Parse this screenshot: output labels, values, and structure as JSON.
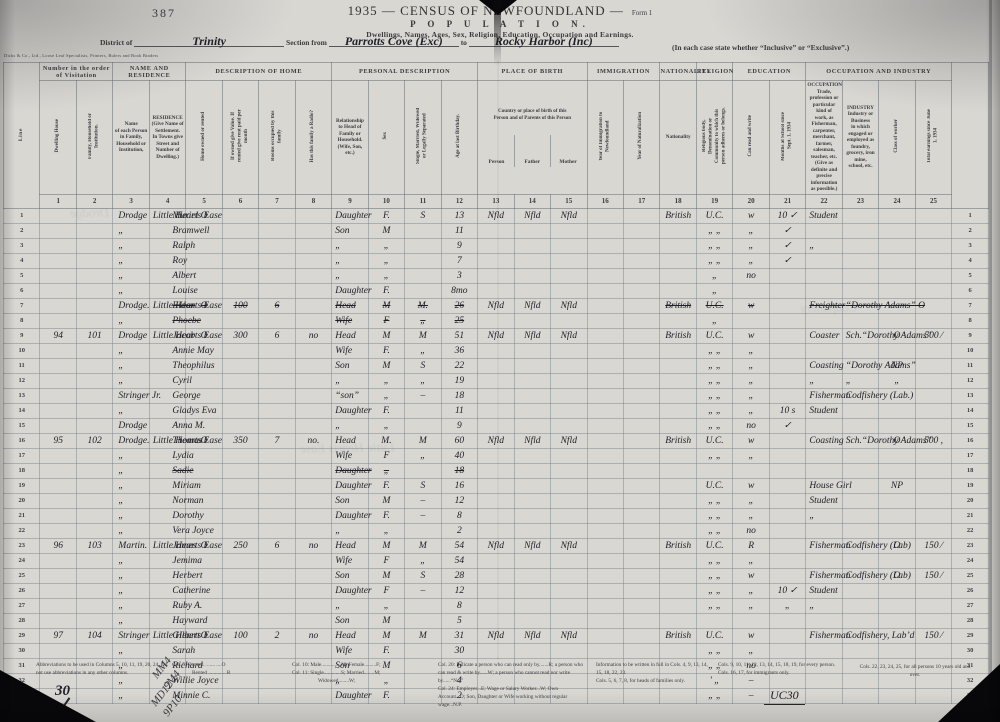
{
  "page": {
    "number": "387",
    "scribble_30": "30",
    "tallies": [
      "MM4",
      "9M4",
      "MD12",
      "9P10"
    ],
    "uc30": "UC30",
    "ghosts": [
      "Drodge",
      "Little Hearts Ease",
      "Codfishery"
    ]
  },
  "header": {
    "title_main": "1935  —  CENSUS OF NEWFOUNDLAND  —",
    "form": "Form 1",
    "population": "P O P U L A T I O N.",
    "subtitle": "Dwellings, Names, Ages, Sex, Religion, Education, Occupation and Earnings.",
    "district_label": "District of",
    "district": "Trinity",
    "section_label": "Section from",
    "section_from": "Parrotts Cove (Exc)",
    "to_label": "to",
    "section_to": "Rocky Harbor (Inc)",
    "inclusive_note": "(In each case state whether “Inclusive” or “Exclusive”.)",
    "imprint": "Dicks & Co., Ltd., Loose Leaf Specialists, Printers, Rulers and Book Binders"
  },
  "table": {
    "group_row": [
      {
        "t": "Line",
        "rs": 3,
        "v": 1,
        "cls": "line-head"
      },
      {
        "t": "Number in the order of Visitation",
        "cs": 2
      },
      {
        "t": "NAME AND RESIDENCE",
        "cs": 2
      },
      {
        "t": "DESCRIPTION OF HOME",
        "cs": 4
      },
      {
        "t": "PERSONAL DESCRIPTION",
        "cs": 4
      },
      {
        "t": "PLACE OF BIRTH",
        "cs": 3
      },
      {
        "t": "IMMIGRATION",
        "cs": 2
      },
      {
        "t": "NATIONALITY"
      },
      {
        "t": "RELIGION"
      },
      {
        "t": "EDUCATION",
        "cs": 2
      },
      {
        "t": "OCCUPATION AND INDUSTRY",
        "cs": 4
      },
      {
        "t": "",
        "rs": 3
      }
    ],
    "sub_row": [
      {
        "t": "Dwelling House",
        "v": 1
      },
      {
        "t": "Family, Household or Institution.",
        "v": 1
      },
      {
        "t": "Name\nof each Person in Family,\nHousehold or Institution,"
      },
      {
        "t": "RESIDENCE\n(Give Name of Settlement.\nIn Towns give Street and\nNumber of Dwelling.)"
      },
      {
        "t": "Home owned or rented",
        "v": 1
      },
      {
        "t": "If owned give Value. If rented give rent paid per month",
        "v": 1
      },
      {
        "t": "Rooms occupied by this family",
        "v": 1
      },
      {
        "t": "Has this family a Radio?",
        "v": 1
      },
      {
        "t": "Relationship\nto Head of\nFamily or\nHousehold.\n(Wife, Son, etc.)"
      },
      {
        "t": "Sex",
        "v": 1
      },
      {
        "t": "Single, Married, Widowed or Legally Separated",
        "v": 1
      },
      {
        "t": "Age at last Birthday.",
        "v": 1
      },
      {
        "t": "Country or place of birth of this\nPerson and of Parents of this Person",
        "cs": 3,
        "sub": [
          "Person",
          "Father",
          "Mother"
        ]
      },
      {
        "t": "Year of Immigration to Newfoundland",
        "v": 1
      },
      {
        "t": "Year of Naturalization",
        "v": 1
      },
      {
        "t": "Nationality"
      },
      {
        "t": "Religious body, Denomination or Community to which this person adheres or belongs.",
        "v": 1
      },
      {
        "t": "Can read and write",
        "v": 1
      },
      {
        "t": "Months at School since Sept. 1, 1934",
        "v": 1
      },
      {
        "t": "OCCUPATION\nTrade, profession or\nparticular kind of\nwork, as Fisherman,\ncarpenter, merchant,\nfarmer, salesman,\nteacher, etc.\n(Give as definite and\nprecise information\nas possible.)"
      },
      {
        "t": "INDUSTRY\nIndustry or Business\nin which engaged or\nemployed as foundry,\ngrocery, iron mine,\nschool, etc."
      },
      {
        "t": "Class of worker",
        "v": 1
      },
      {
        "t": "Total earnings since June 1, 1934",
        "v": 1
      }
    ],
    "col_numbers": [
      "1",
      "2",
      "3",
      "4",
      "5",
      "6",
      "7",
      "8",
      "9",
      "10",
      "11",
      "12",
      "13",
      "14",
      "15",
      "16",
      "17",
      "18",
      "19",
      "20",
      "21",
      "22",
      "23",
      "24",
      "25"
    ],
    "rows": [
      {
        "sn": "Drodge",
        "gn": "Muriel",
        "res": "Little Hearts Ease",
        "own": "O",
        "rel": "Daughter",
        "sex": "F.",
        "mar": "S",
        "age": "13",
        "bp": "Nfld",
        "bf": "Nfld",
        "bm": "Nfld",
        "nat": "British",
        "rlg": "U.C.",
        "rw": "w",
        "sch": "10 ✓",
        "occ": "Student"
      },
      {
        "sn": "„",
        "gn": "Bramwell",
        "rel": "Son",
        "sex": "M",
        "age": "11",
        "rlg": "„ „",
        "rw": "„",
        "sch": "✓"
      },
      {
        "sn": "„",
        "gn": "Ralph",
        "rel": "„",
        "sex": "„",
        "age": "9",
        "rlg": "„ „",
        "rw": "„",
        "sch": "✓",
        "occ": "„"
      },
      {
        "sn": "„",
        "gn": "Roy",
        "rel": "„",
        "sex": "„",
        "age": "7",
        "rlg": "„ „",
        "rw": "„",
        "sch": "✓"
      },
      {
        "sn": "„",
        "gn": "Albert",
        "rel": "„",
        "sex": "„",
        "age": "3",
        "rlg": "„",
        "rw": "no"
      },
      {
        "sn": "„",
        "gn": "Louise",
        "rel": "Daughter",
        "sex": "F.",
        "age": "8mo",
        "rlg": "„"
      },
      {
        "sn": "Drodge.",
        "gn": "Eldon",
        "res": "Little Hearts Ease",
        "own": "O",
        "val": "100",
        "rm": "6",
        "rel": "Head",
        "sex": "M",
        "mar": "M.",
        "age": "26",
        "bp": "Nfld",
        "bf": "Nfld",
        "bm": "Nfld",
        "nat": "British",
        "rlg": "U.C.",
        "rw": "w",
        "occ": "Freighter",
        "ind": "“Dorothy Adams” O",
        "strike": [
          "gn",
          "own",
          "val",
          "rm",
          "rel",
          "sex",
          "mar",
          "age",
          "nat",
          "rlg",
          "rw",
          "occ",
          "ind"
        ]
      },
      {
        "sn": "„",
        "gn": "Phoebe",
        "rel": "Wife",
        "sex": "F",
        "mar": "„",
        "age": "25",
        "rlg": "„",
        "strike": [
          "gn",
          "rel",
          "sex",
          "mar",
          "age"
        ]
      },
      {
        "dw": "94",
        "fam": "101",
        "sn": "Drodge",
        "gn": "Jacob",
        "res": "Little Hearts Ease",
        "own": "O",
        "val": "300",
        "rm": "6",
        "rad": "no",
        "rel": "Head",
        "sex": "M",
        "mar": "M",
        "age": "51",
        "bp": "Nfld",
        "bf": "Nfld",
        "bm": "Nfld",
        "nat": "British",
        "rlg": "U.C.",
        "rw": "w",
        "occ": "Coaster",
        "ind": "Sch.“Dorothy Adams”",
        "cls": "O",
        "earn": "500 ⁄"
      },
      {
        "sn": "„",
        "gn": "Annie May",
        "rel": "Wife",
        "sex": "F.",
        "mar": "„",
        "age": "36",
        "rlg": "„ „",
        "rw": "„"
      },
      {
        "sn": "„",
        "gn": "Theophilus",
        "rel": "Son",
        "sex": "M",
        "mar": "S",
        "age": "22",
        "rlg": "„ „",
        "rw": "„",
        "occ": "Coasting",
        "ind": "“Dorothy Adams”",
        "cls": "NP"
      },
      {
        "sn": "„",
        "gn": "Cyril",
        "rel": "„",
        "sex": "„",
        "mar": "„",
        "age": "19",
        "rlg": "„ „",
        "rw": "„",
        "occ": "„",
        "ind": "„",
        "cls": "„"
      },
      {
        "sn": "Stringer Jr.",
        "gn": "George",
        "rel": "“son”",
        "sex": "„",
        "mar": "–",
        "age": "18",
        "rlg": "„ „",
        "rw": "„",
        "occ": "Fisherman",
        "ind": "Codfishery (Lab.)"
      },
      {
        "sn": "„",
        "gn": "Gladys Eva",
        "rel": "Daughter",
        "sex": "F.",
        "age": "11",
        "rlg": "„ „",
        "rw": "„",
        "sch": "10 s",
        "occ": "Student"
      },
      {
        "sn": "Drodge",
        "gn": "Anna M.",
        "rel": "„",
        "sex": "„",
        "age": "9",
        "rlg": "„ „",
        "rw": "no",
        "sch": "✓"
      },
      {
        "dw": "95",
        "fam": "102",
        "sn": "Drodge.",
        "gn": "Thomas",
        "res": "Little Hearts Ease",
        "own": "O",
        "val": "350",
        "rm": "7",
        "rad": "no.",
        "rel": "Head",
        "sex": "M.",
        "mar": "M",
        "age": "60",
        "bp": "Nfld",
        "bf": "Nfld",
        "bm": "Nfld",
        "nat": "British",
        "rlg": "U.C.",
        "rw": "w",
        "occ": "Coasting",
        "ind": "Sch.“Dorothy Adams”",
        "cls": "O",
        "earn": "500 ,"
      },
      {
        "sn": "„",
        "gn": "Lydia",
        "rel": "Wife",
        "sex": "F",
        "mar": "„",
        "age": "40",
        "rlg": "„ „",
        "rw": "„"
      },
      {
        "sn": "„",
        "gn": "Sadie",
        "rel": "Daughter",
        "sex": "„",
        "age": "18",
        "strike": [
          "gn",
          "rel",
          "sex",
          "age"
        ]
      },
      {
        "sn": "„",
        "gn": "Miriam",
        "rel": "Daughter",
        "sex": "F.",
        "mar": "S",
        "age": "16",
        "rlg": "U.C.",
        "rw": "w",
        "occ": "House Girl",
        "cls": "NP"
      },
      {
        "sn": "„",
        "gn": "Norman",
        "rel": "Son",
        "sex": "M",
        "mar": "–",
        "age": "12",
        "rlg": "„ „",
        "rw": "„",
        "occ": "Student"
      },
      {
        "sn": "„",
        "gn": "Dorothy",
        "rel": "Daughter",
        "sex": "F.",
        "mar": "–",
        "age": "8",
        "rlg": "„ „",
        "rw": "„",
        "occ": "„"
      },
      {
        "sn": "„",
        "gn": "Vera Joyce",
        "rel": "„",
        "sex": "„",
        "age": "2",
        "rlg": "„ „",
        "rw": "no"
      },
      {
        "dw": "96",
        "fam": "103",
        "sn": "Martin.",
        "gn": "James",
        "res": "Little Hearts Ease",
        "own": "O",
        "val": "250",
        "rm": "6",
        "rad": "no",
        "rel": "Head",
        "sex": "M",
        "mar": "M",
        "age": "54",
        "bp": "Nfld",
        "bf": "Nfld",
        "bm": "Nfld",
        "nat": "British",
        "rlg": "U.C.",
        "rw": "R",
        "occ": "Fisherman",
        "ind": "Codfishery (Lab)",
        "cls": "O",
        "earn": "150 ⁄"
      },
      {
        "sn": "„",
        "gn": "Jemima",
        "rel": "Wife",
        "sex": "F",
        "mar": "„",
        "age": "54",
        "rlg": "„ „",
        "rw": "„"
      },
      {
        "sn": "„",
        "gn": "Herbert",
        "rel": "Son",
        "sex": "M",
        "mar": "S",
        "age": "28",
        "rlg": "„ „",
        "rw": "w",
        "occ": "Fisherman",
        "ind": "Codfishery (Lab)",
        "cls": "O",
        "earn": "150 ⁄"
      },
      {
        "sn": "„",
        "gn": "Catherine",
        "rel": "Daughter",
        "sex": "F",
        "mar": "–",
        "age": "12",
        "rlg": "„ „",
        "rw": "„",
        "sch": "10 ✓",
        "occ": "Student"
      },
      {
        "sn": "„",
        "gn": "Ruby A.",
        "rel": "„",
        "sex": "„",
        "age": "8",
        "rlg": "„ „",
        "rw": "„",
        "sch": "„",
        "occ": "„"
      },
      {
        "sn": "„",
        "gn": "Hayward",
        "rel": "Son",
        "sex": "M",
        "age": "5"
      },
      {
        "dw": "97",
        "fam": "104",
        "sn": "Stringer",
        "gn": "Gilbert",
        "res": "Little Hearts Ease",
        "own": "O",
        "val": "100",
        "rm": "2",
        "rad": "no",
        "rel": "Head",
        "sex": "M",
        "mar": "M",
        "age": "31",
        "bp": "Nfld",
        "bf": "Nfld",
        "bm": "Nfld",
        "nat": "British",
        "rlg": "U.C.",
        "rw": "w",
        "occ": "Fisherman",
        "ind": "Codfishery, Lab’d",
        "earn": "150 ⁄"
      },
      {
        "sn": "„",
        "gn": "Sarah",
        "rel": "Wife",
        "sex": "F.",
        "age": "30",
        "rlg": "„ „",
        "rw": "„"
      },
      {
        "sn": "„",
        "gn": "Richard",
        "rel": "Son",
        "sex": "M",
        "age": "6",
        "rlg": "„ „",
        "rw": "no"
      },
      {
        "sn": "„",
        "gn": "Willie Joyce",
        "rel": "„",
        "sex": "„",
        "age": "4",
        "rlg": "' „",
        "rw": "–"
      },
      {
        "sn": "„",
        "gn": "Minnie C.",
        "rel": "Daughter",
        "sex": "F.",
        "age": "2",
        "rlg": "„ „",
        "rw": "–"
      }
    ]
  },
  "footer": {
    "abbrev": "Abbreviations to be used in Columns 5, 10, 11, 19, 20, 24. Do not use abbreviations in any other columns.",
    "col5a": "Col. 5:  Owned.. ...... ....O",
    "col5b": "Rented ..............R",
    "col10": "Col. 10:  Male...............M;    Female.........F;",
    "col11": "Col. 11:  Single.............S;    Married........M;",
    "col11b": "Widowed........W;",
    "col20": "Col. 20: Indicate a person who can read only by.......R; a person who can read & write by......W; a person who cannot read nor write by......“No.”",
    "col24": "Col. 24: Employer...E; Wage or Salary Worker...W; Own Account...O; Son, Daughter or Wife working without regular wage...N.P.",
    "info1": "Information to be written in full in Cols. 4, 9, 13, 14, 15, 18, 22, 23.",
    "info1b": "Cols. 5, 6, 7, 8, for heads of families only.",
    "info2": "Cols. 9, 10, 11, 12, 13, 14, 15, 18, 19, for every person.",
    "info2b": "Cols. 16, 17, for immigrants only.",
    "info3": "Cols. 22, 23, 24, 25, for all persons 10 years old and over."
  }
}
